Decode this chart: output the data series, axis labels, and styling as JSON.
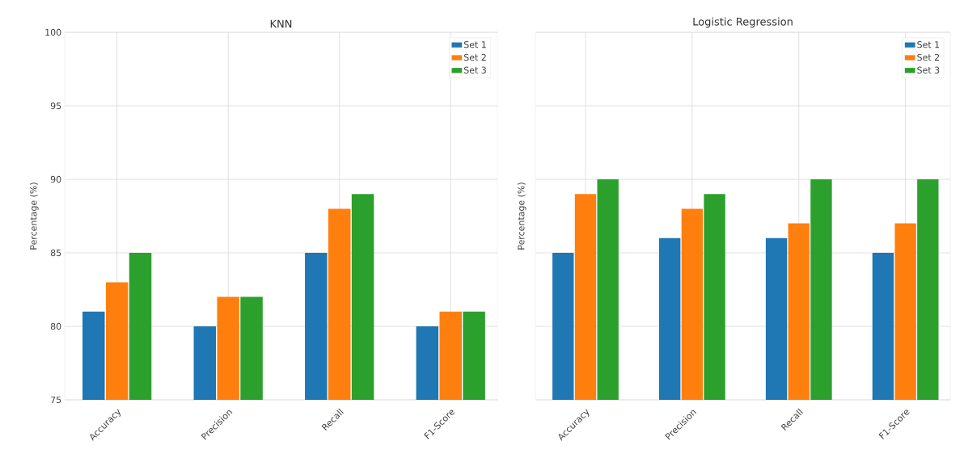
{
  "chart_data": [
    {
      "type": "bar",
      "title": "KNN",
      "ylabel": "Percentage (%)",
      "categories": [
        "Accuracy",
        "Precision",
        "Recall",
        "F1-Score"
      ],
      "series": [
        {
          "name": "Set 1",
          "color": "#1f77b4",
          "values": [
            81,
            80,
            85,
            80
          ]
        },
        {
          "name": "Set 2",
          "color": "#ff7f0e",
          "values": [
            83,
            82,
            88,
            81
          ]
        },
        {
          "name": "Set 3",
          "color": "#2ca02c",
          "values": [
            85,
            82,
            89,
            81
          ]
        }
      ],
      "ylim": [
        75,
        100
      ],
      "yticks": [
        75,
        80,
        85,
        90,
        95,
        100
      ],
      "grid": true,
      "legend": "top right"
    },
    {
      "type": "bar",
      "title": "Logistic Regression",
      "ylabel": "Percentage (%)",
      "categories": [
        "Accuracy",
        "Precision",
        "Recall",
        "F1-Score"
      ],
      "series": [
        {
          "name": "Set 1",
          "color": "#1f77b4",
          "values": [
            85,
            86,
            86,
            85
          ]
        },
        {
          "name": "Set 2",
          "color": "#ff7f0e",
          "values": [
            89,
            88,
            87,
            87
          ]
        },
        {
          "name": "Set 3",
          "color": "#2ca02c",
          "values": [
            90,
            89,
            90,
            90
          ]
        }
      ],
      "ylim": [
        75,
        100
      ],
      "yticks": [
        75,
        80,
        85,
        90,
        95,
        100
      ],
      "grid": true,
      "legend": "top right",
      "tick_labels": "x"
    }
  ]
}
